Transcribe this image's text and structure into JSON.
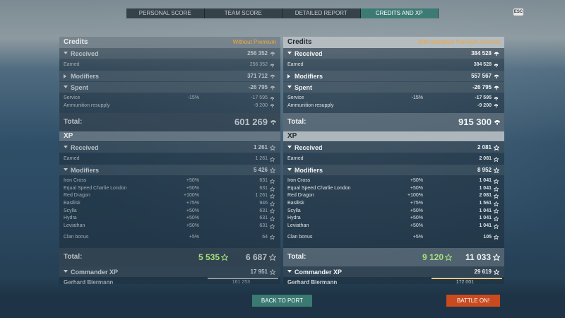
{
  "tabs": [
    "PERSONAL SCORE",
    "TEAM SCORE",
    "DETAILED REPORT",
    "CREDITS AND XP"
  ],
  "active_tab": 3,
  "esc": "ESC",
  "panels": [
    {
      "credits": {
        "title": "Credits",
        "mode": "Without Premium",
        "sections": [
          {
            "label": "Received",
            "value": "256 352",
            "items": [
              {
                "label": "Earned",
                "pct": "",
                "value": "256 352"
              }
            ]
          },
          {
            "label": "Modifiers",
            "value": "371 712",
            "items": []
          },
          {
            "label": "Spent",
            "value": "-26 795",
            "items": [
              {
                "label": "Service",
                "pct": "-15%",
                "value": "-17 595"
              },
              {
                "label": "Ammunition resupply",
                "pct": "",
                "value": "-9 200"
              }
            ]
          }
        ],
        "total_label": "Total:",
        "total": "601 269"
      },
      "xp": {
        "title": "XP",
        "sections": [
          {
            "label": "Received",
            "value": "1 261",
            "items": [
              {
                "label": "Earned",
                "pct": "",
                "value": "1 261"
              }
            ]
          },
          {
            "label": "Modifiers",
            "value": "5 426",
            "items": [
              {
                "label": "Iron Cross",
                "pct": "+50%",
                "value": "631"
              },
              {
                "label": "Equal Speed Charlie London",
                "pct": "+50%",
                "value": "631"
              },
              {
                "label": "Red Dragon",
                "pct": "+100%",
                "value": "1 261"
              },
              {
                "label": "Basilisk",
                "pct": "+75%",
                "value": "946"
              },
              {
                "label": "Scylla",
                "pct": "+50%",
                "value": "631"
              },
              {
                "label": "Hydra",
                "pct": "+50%",
                "value": "631"
              },
              {
                "label": "Leviathan",
                "pct": "+50%",
                "value": "631"
              }
            ],
            "footer_items": [
              {
                "label": "Clan bonus",
                "pct": "+5%",
                "value": "64"
              }
            ]
          }
        ],
        "total_label": "Total:",
        "totals": [
          "5 535",
          "6 687"
        ]
      },
      "commander": {
        "label": "Commander XP",
        "value": "17 951",
        "captain": "Gerhard Biermann",
        "captain_value": "161 253"
      }
    },
    {
      "credits": {
        "title": "Credits",
        "mode": "With Warships Premium Account",
        "sections": [
          {
            "label": "Received",
            "value": "384 528",
            "items": [
              {
                "label": "Earned",
                "pct": "",
                "value": "384 528"
              }
            ]
          },
          {
            "label": "Modifiers",
            "value": "557 567",
            "items": []
          },
          {
            "label": "Spent",
            "value": "-26 795",
            "items": [
              {
                "label": "Service",
                "pct": "-15%",
                "value": "-17 595"
              },
              {
                "label": "Ammunition resupply",
                "pct": "",
                "value": "-9 200"
              }
            ]
          }
        ],
        "total_label": "Total:",
        "total": "915 300"
      },
      "xp": {
        "title": "XP",
        "sections": [
          {
            "label": "Received",
            "value": "2 081",
            "items": [
              {
                "label": "Earned",
                "pct": "",
                "value": "2 081"
              }
            ]
          },
          {
            "label": "Modifiers",
            "value": "8 952",
            "items": [
              {
                "label": "Iron Cross",
                "pct": "+50%",
                "value": "1 041"
              },
              {
                "label": "Equal Speed Charlie London",
                "pct": "+50%",
                "value": "1 041"
              },
              {
                "label": "Red Dragon",
                "pct": "+100%",
                "value": "2 081"
              },
              {
                "label": "Basilisk",
                "pct": "+75%",
                "value": "1 561"
              },
              {
                "label": "Scylla",
                "pct": "+50%",
                "value": "1 041"
              },
              {
                "label": "Hydra",
                "pct": "+50%",
                "value": "1 041"
              },
              {
                "label": "Leviathan",
                "pct": "+50%",
                "value": "1 041"
              }
            ],
            "footer_items": [
              {
                "label": "Clan bonus",
                "pct": "+5%",
                "value": "105"
              }
            ]
          }
        ],
        "total_label": "Total:",
        "totals": [
          "9 120",
          "11 033"
        ]
      },
      "commander": {
        "label": "Commander XP",
        "value": "29 619",
        "captain": "Gerhard Biermann",
        "captain_value": "172 001"
      }
    }
  ],
  "buttons": [
    "BACK TO PORT",
    "BATTLE ON!"
  ]
}
